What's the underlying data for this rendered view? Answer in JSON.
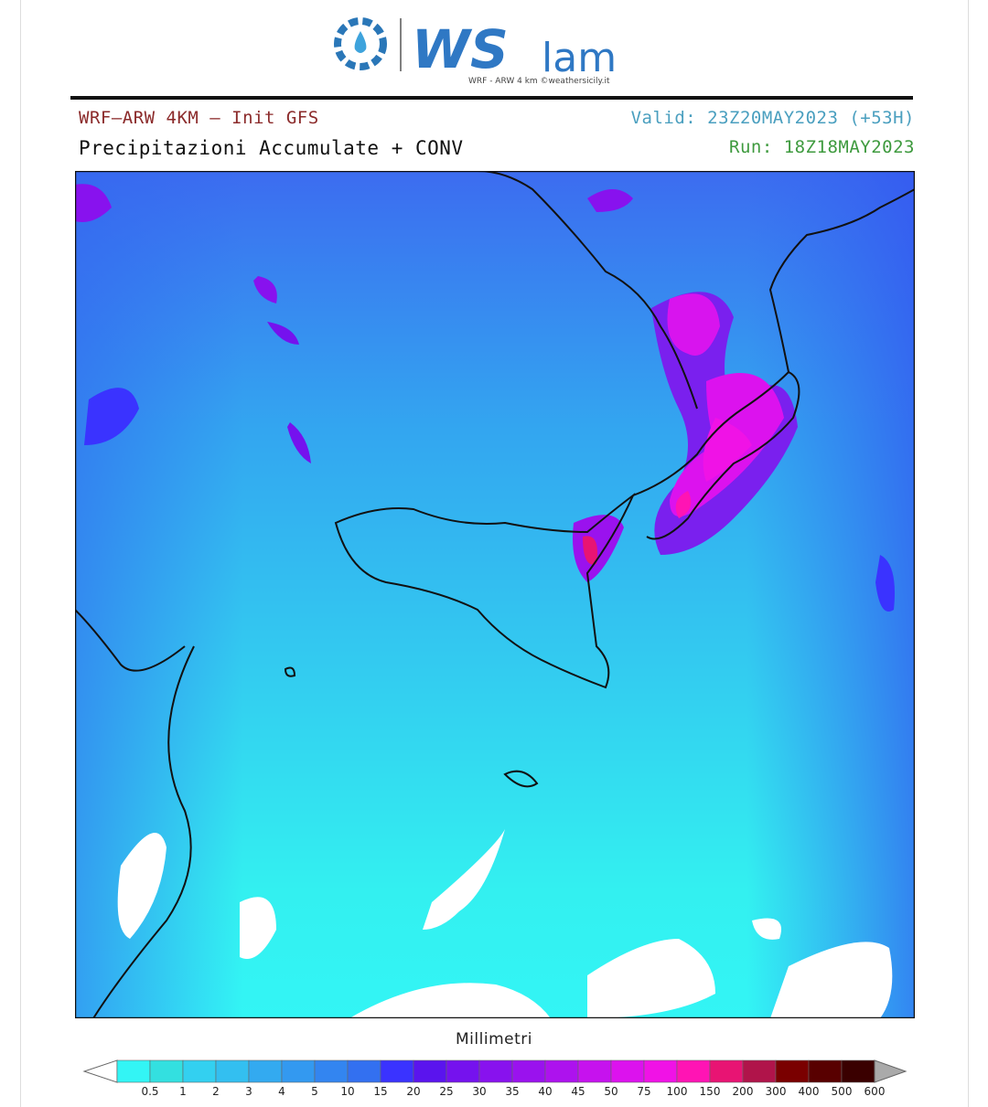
{
  "logo": {
    "brand_main": "WS",
    "brand_tail": "lam",
    "tagline": "WRF - ARW 4 km ©weathersicily.it"
  },
  "header": {
    "model": "WRF–ARW 4KM – Init GFS",
    "valid": "Valid: 23Z20MAY2023 (+53H)",
    "product": "Precipitazioni Accumulate + CONV",
    "run": "Run: 18Z18MAY2023"
  },
  "colorbar": {
    "title": "Millimetri",
    "levels": [
      0.5,
      1,
      2,
      3,
      4,
      5,
      10,
      15,
      20,
      25,
      30,
      35,
      40,
      45,
      50,
      75,
      100,
      150,
      200,
      300,
      400,
      500,
      600
    ],
    "colors": [
      "#33f5f5",
      "#33e0e0",
      "#33d0f0",
      "#33bff0",
      "#33aaf0",
      "#3399f0",
      "#3385f0",
      "#3370f0",
      "#3a33ff",
      "#5a14ee",
      "#7512ee",
      "#8812ee",
      "#9a12ee",
      "#ad12ee",
      "#c612ee",
      "#dc12ee",
      "#f012e6",
      "#ff14b4",
      "#e81473",
      "#b0144a",
      "#7a0000",
      "#580000",
      "#3a0000"
    ],
    "under_color": "#ffffff",
    "over_color": "#aaaaaa"
  }
}
